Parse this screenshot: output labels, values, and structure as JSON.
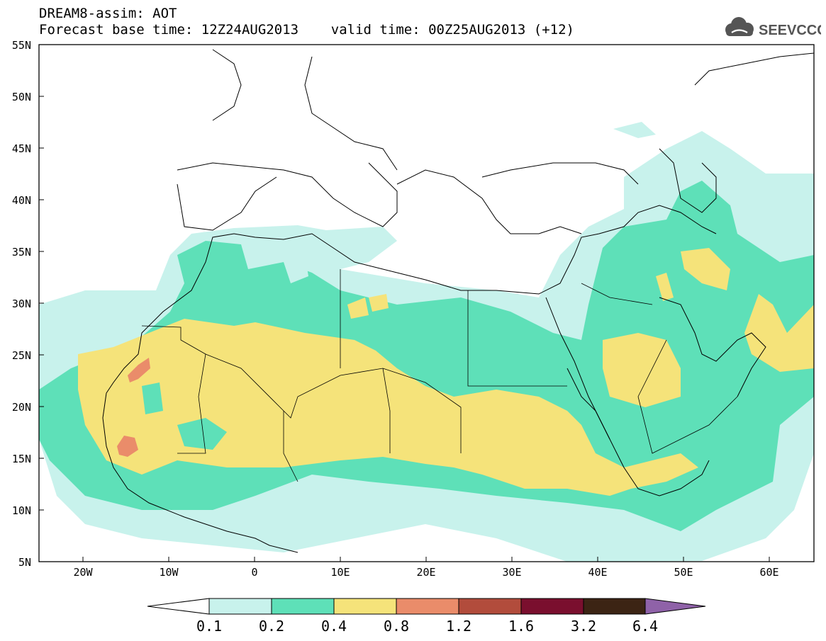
{
  "title": {
    "line1": "DREAM8-assim: AOT",
    "line2": "Forecast base time: 12Z24AUG2013    valid time: 00Z25AUG2013 (+12)"
  },
  "logo": {
    "text": "SEEVCCC",
    "icon": "cloud-icon"
  },
  "map": {
    "lat_labels": [
      "55N",
      "50N",
      "45N",
      "40N",
      "35N",
      "30N",
      "25N",
      "20N",
      "15N",
      "10N",
      "5N"
    ],
    "lon_labels": [
      "20W",
      "10W",
      "0",
      "10E",
      "20E",
      "30E",
      "40E",
      "50E",
      "60E"
    ]
  },
  "colorbar": {
    "labels": [
      "0.1",
      "0.2",
      "0.4",
      "0.8",
      "1.2",
      "1.6",
      "3.2",
      "6.4"
    ],
    "colors": [
      "#ffffff",
      "#c8f2ec",
      "#5ee0b8",
      "#f5e37a",
      "#ea8c6a",
      "#b24c3c",
      "#7a0f2e",
      "#3c2414",
      "#8f62a8"
    ]
  }
}
